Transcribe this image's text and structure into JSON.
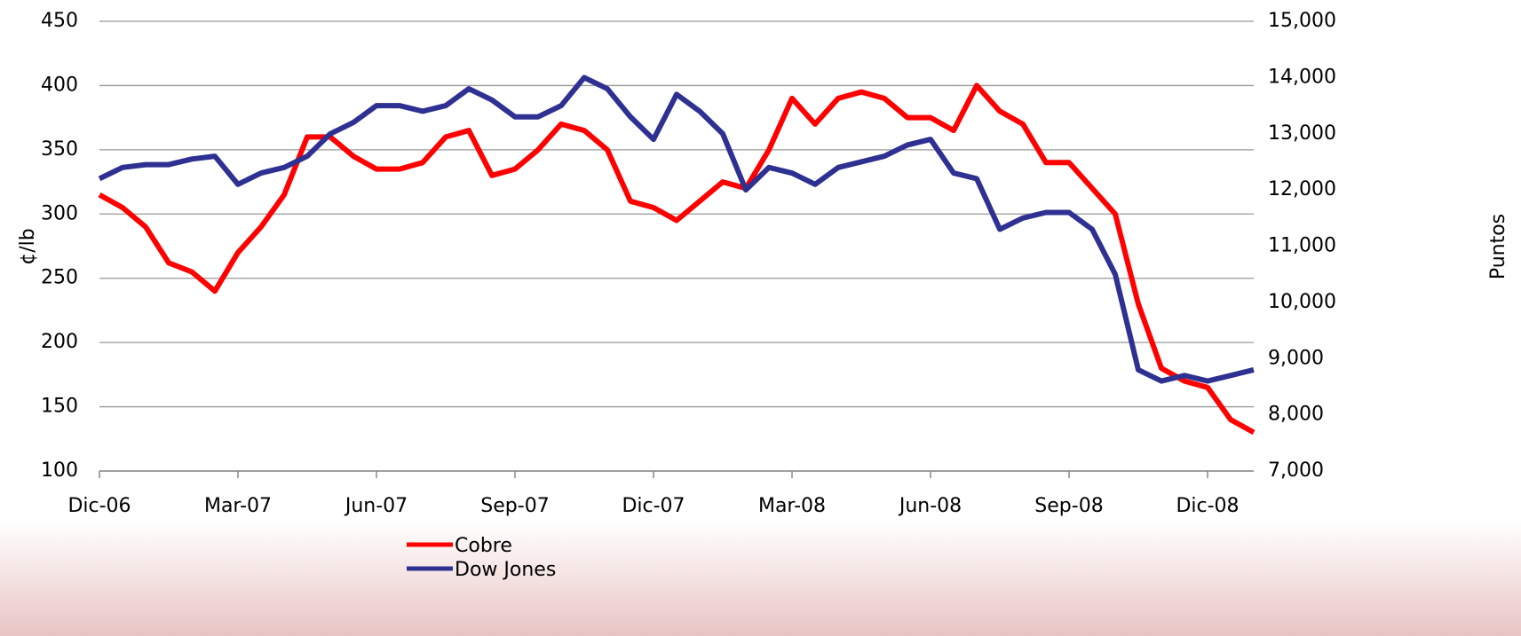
{
  "chart_data": {
    "type": "line",
    "categories": [
      "Dic-06",
      null,
      null,
      null,
      null,
      null,
      "Mar-07",
      null,
      null,
      null,
      null,
      null,
      "Jun-07",
      null,
      null,
      null,
      null,
      null,
      "Sep-07",
      null,
      null,
      null,
      null,
      null,
      "Dic-07",
      null,
      null,
      null,
      null,
      null,
      "Mar-08",
      null,
      null,
      null,
      null,
      null,
      "Jun-08",
      null,
      null,
      null,
      null,
      null,
      "Sep-08",
      null,
      null,
      null,
      null,
      null,
      "Dic-08",
      null,
      null
    ],
    "ylabel": "¢/lb",
    "y2label": "Puntos",
    "ylim": [
      100,
      450
    ],
    "yticks": [
      100,
      150,
      200,
      250,
      300,
      350,
      400,
      450
    ],
    "y2lim": [
      7000,
      15000
    ],
    "y2ticks": [
      {
        "value": 7000,
        "label": "7,000"
      },
      {
        "value": 8000,
        "label": "8,000"
      },
      {
        "value": 9000,
        "label": "9,000"
      },
      {
        "value": 10000,
        "label": "10,000"
      },
      {
        "value": 11000,
        "label": "11,000"
      },
      {
        "value": 12000,
        "label": "12,000"
      },
      {
        "value": 13000,
        "label": "13,000"
      },
      {
        "value": 14000,
        "label": "14,000"
      },
      {
        "value": 15000,
        "label": "15,000"
      }
    ],
    "grid": true,
    "legend": "bottom",
    "series": [
      {
        "name": "Cobre",
        "color": "#ff0000",
        "values": [
          315,
          305,
          290,
          262,
          255,
          240,
          270,
          290,
          315,
          360,
          360,
          345,
          335,
          335,
          340,
          360,
          365,
          330,
          335,
          350,
          370,
          365,
          350,
          310,
          305,
          295,
          310,
          325,
          320,
          350,
          390,
          370,
          390,
          395,
          390,
          375,
          375,
          365,
          400,
          380,
          370,
          340,
          340,
          320,
          300,
          230,
          180,
          170,
          165,
          140,
          130
        ]
      },
      {
        "name": "Dow Jones",
        "color": "#2e3192",
        "axis": "y2",
        "values": [
          12200,
          12400,
          12450,
          12450,
          12550,
          12600,
          12100,
          12300,
          12400,
          12600,
          13000,
          13200,
          13500,
          13500,
          13400,
          13500,
          13800,
          13600,
          13300,
          13300,
          13500,
          14000,
          13800,
          13300,
          12900,
          13700,
          13400,
          13000,
          12000,
          12400,
          12300,
          12100,
          12400,
          12500,
          12600,
          12800,
          12900,
          12300,
          12200,
          11300,
          11500,
          11600,
          11600,
          11300,
          10500,
          8800,
          8600,
          8700,
          8600,
          8700,
          8800
        ]
      }
    ]
  }
}
